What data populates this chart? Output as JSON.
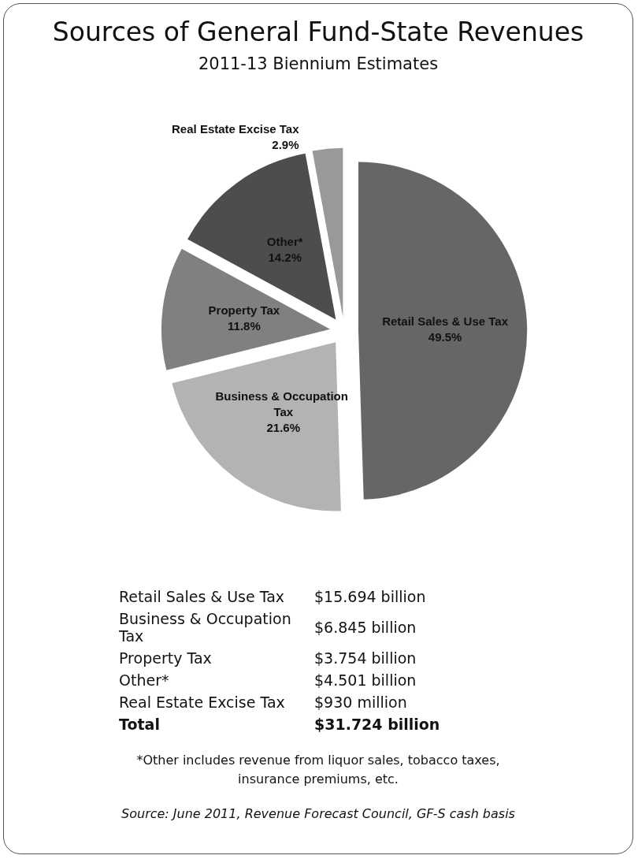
{
  "chart_data": {
    "type": "pie",
    "title": "Sources of General Fund-State Revenues",
    "subtitle": "2011-13 Biennium Estimates",
    "categories": [
      "Retail Sales & Use Tax",
      "Business & Occupation Tax",
      "Property Tax",
      "Other*",
      "Real Estate Excise Tax"
    ],
    "values": [
      49.5,
      21.6,
      11.8,
      14.2,
      2.9
    ],
    "colors": [
      "#666666",
      "#b3b3b3",
      "#808080",
      "#4d4d4d",
      "#999999"
    ],
    "value_labels": [
      "49.5%",
      "21.6%",
      "11.8%",
      "14.2%",
      "2.9%"
    ],
    "legend": false,
    "annotations": [
      "Retail Sales & Use Tax",
      "$15.694 billion",
      "Business & Occupation Tax",
      "$6.845 billion",
      "Property Tax",
      "$3.754 billion",
      "Other*",
      "$4.501 billion",
      "Real Estate Excise Tax",
      "$930 million",
      "Total",
      "$31.724 billion",
      "*Other includes revenue from liquor sales, tobacco taxes, insurance premiums, etc.",
      "Source: June 2011, Revenue Forecast Council, GF-S cash basis"
    ]
  }
}
